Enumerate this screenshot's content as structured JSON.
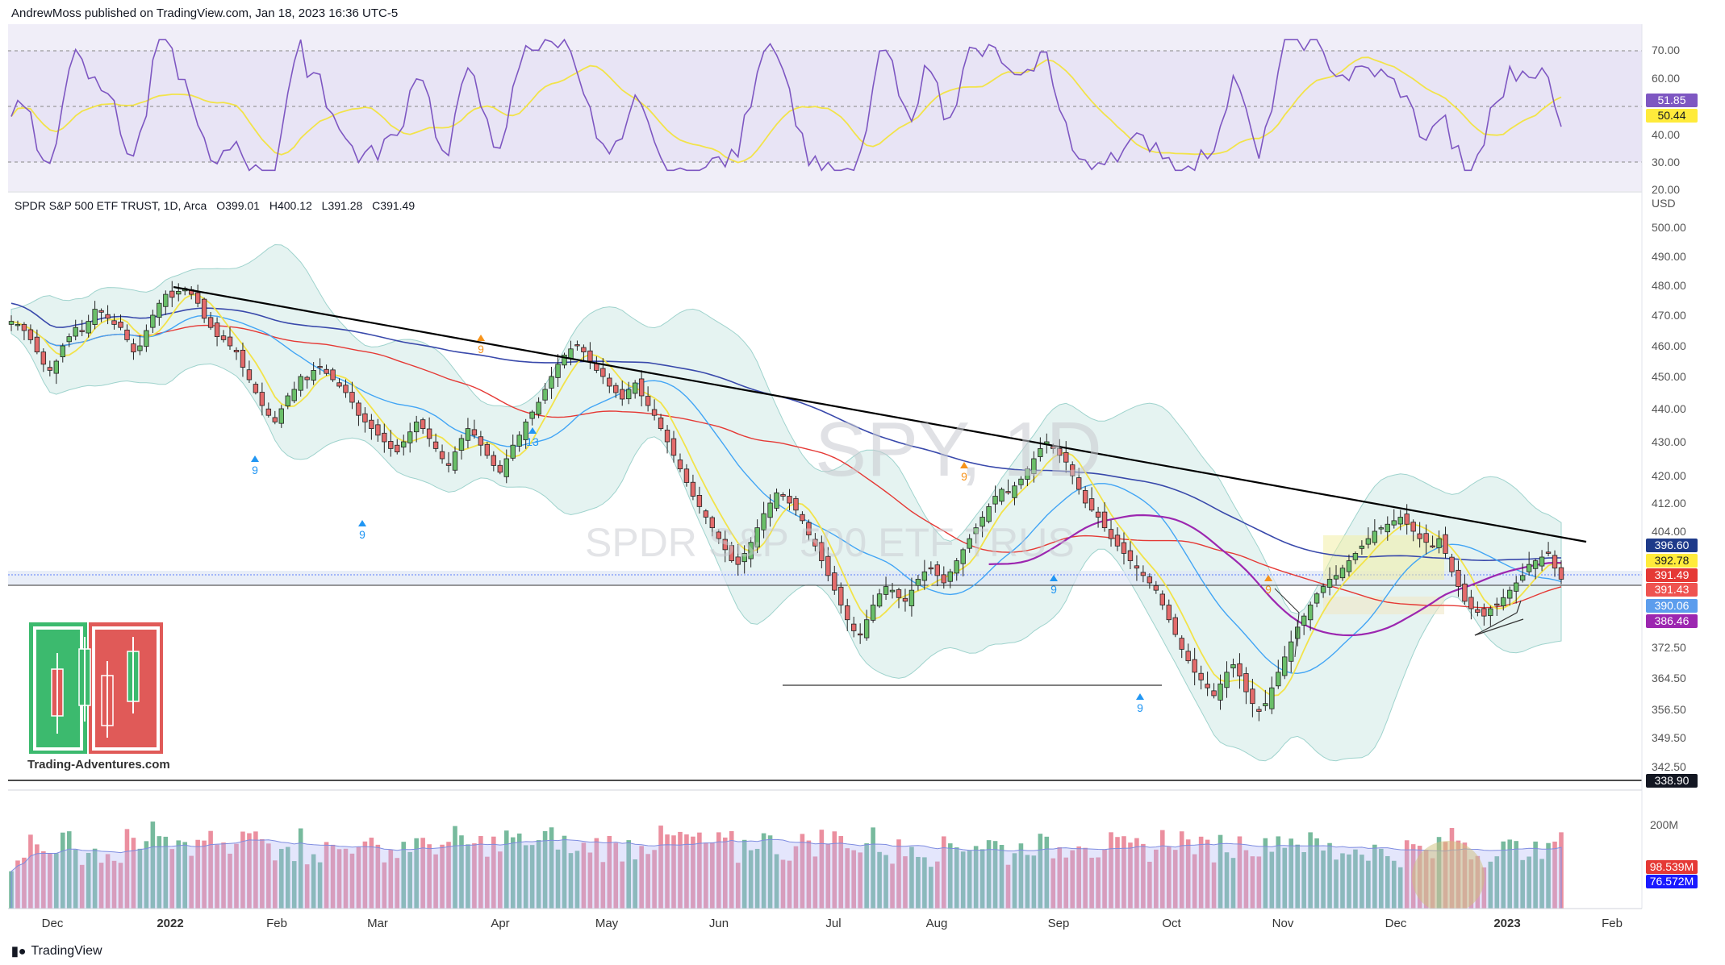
{
  "header": {
    "published": "AndrewMoss published on TradingView.com, Jan 18, 2023 16:36 UTC-5"
  },
  "symbol": {
    "name": "SPDR S&P 500 ETF TRUST, 1D, Arca",
    "open": "O399.01",
    "high": "H400.12",
    "low": "L391.28",
    "close": "C391.49"
  },
  "watermark": {
    "ticker": "SPY, 1D",
    "name": "SPDR S&P 500 ETF TRUS"
  },
  "currency": "USD",
  "brand": {
    "overlay_text": "Trading-Adventures.com",
    "footer": "TradingView"
  },
  "colors": {
    "up": "#26a69a",
    "down": "#ef5350",
    "rsi_line": "#7e57c2",
    "rsi_ma": "#f5e663",
    "ma_red": "#e53935",
    "ma_blue": "#3949ab",
    "ema_yellow": "#f2e34a",
    "vwap_purple": "#9c27b0",
    "bb_fill": "#b2dfdb"
  },
  "price_axis": {
    "ticks": [
      "500.00",
      "490.00",
      "480.00",
      "470.00",
      "460.00",
      "450.00",
      "440.00",
      "430.00",
      "420.00",
      "412.00",
      "404.00",
      "372.50",
      "364.50",
      "356.50",
      "349.50",
      "342.50"
    ]
  },
  "price_badges": [
    {
      "value": "396.60",
      "bg": "#1e3a8a",
      "fg": "#ffffff"
    },
    {
      "value": "392.78",
      "bg": "#ffeb3b",
      "fg": "#131722"
    },
    {
      "value": "391.49",
      "bg": "#e53935",
      "fg": "#ffffff"
    },
    {
      "value": "391.43",
      "bg": "#ef5350",
      "fg": "#ffffff"
    },
    {
      "value": "390.06",
      "bg": "#5c9ded",
      "fg": "#ffffff"
    },
    {
      "value": "386.46",
      "bg": "#9c27b0",
      "fg": "#ffffff"
    },
    {
      "value": "338.90",
      "bg": "#131722",
      "fg": "#ffffff"
    }
  ],
  "rsi_axis": {
    "ticks": [
      "70.00",
      "60.00",
      "40.00",
      "30.00",
      "20.00"
    ]
  },
  "rsi_badges": [
    {
      "value": "51.85",
      "bg": "#7e57c2",
      "fg": "#ffffff"
    },
    {
      "value": "50.44",
      "bg": "#ffeb3b",
      "fg": "#131722"
    }
  ],
  "volume_axis": {
    "ticks": [
      "200M"
    ]
  },
  "volume_badges": [
    {
      "value": "98.539M",
      "bg": "#e53935",
      "fg": "#ffffff"
    },
    {
      "value": "76.572M",
      "bg": "#1a1aff",
      "fg": "#ffffff"
    }
  ],
  "x_axis": {
    "labels": [
      "Dec",
      "2022",
      "Feb",
      "Mar",
      "Apr",
      "May",
      "Jun",
      "Jul",
      "Aug",
      "Sep",
      "Oct",
      "Nov",
      "Dec",
      "2023",
      "Feb"
    ]
  },
  "td_marks": [
    {
      "label": "9",
      "color": "#2196f3"
    },
    {
      "label": "9",
      "color": "#2196f3"
    },
    {
      "label": "13",
      "color": "#2196f3"
    },
    {
      "label": "9",
      "color": "#2196f3"
    },
    {
      "label": "9",
      "color": "#2196f3"
    },
    {
      "label": "9",
      "color": "#2196f3"
    },
    {
      "label": "9",
      "color": "#f7931a"
    },
    {
      "label": "9",
      "color": "#f7931a"
    },
    {
      "label": "9",
      "color": "#f7931a"
    }
  ],
  "chart_data": {
    "type": "candlestick",
    "title": "SPDR S&P 500 ETF TRUST, 1D, Arca",
    "ylim": [
      338,
      505
    ],
    "price_closes_approx": [
      468,
      467,
      465,
      462,
      458,
      454,
      452,
      455,
      460,
      463,
      466,
      465,
      468,
      472,
      471,
      469,
      467,
      466,
      462,
      458,
      460,
      465,
      470,
      474,
      477,
      476,
      478,
      479,
      477,
      474,
      469,
      466,
      463,
      462,
      460,
      458,
      453,
      449,
      445,
      441,
      438,
      436,
      440,
      444,
      446,
      450,
      449,
      452,
      453,
      451,
      449,
      447,
      445,
      442,
      438,
      436,
      434,
      432,
      430,
      428,
      427,
      430,
      433,
      436,
      434,
      431,
      428,
      425,
      423,
      427,
      431,
      434,
      432,
      429,
      426,
      423,
      421,
      425,
      429,
      432,
      436,
      439,
      442,
      446,
      450,
      454,
      457,
      459,
      460,
      458,
      455,
      452,
      450,
      447,
      445,
      443,
      446,
      448,
      444,
      441,
      438,
      434,
      430,
      426,
      422,
      418,
      414,
      411,
      408,
      405,
      402,
      399,
      396,
      395,
      398,
      401,
      405,
      409,
      412,
      415,
      414,
      412,
      410,
      407,
      403,
      400,
      396,
      392,
      388,
      384,
      380,
      377,
      376,
      380,
      384,
      387,
      389,
      388,
      386,
      385,
      388,
      391,
      393,
      394,
      392,
      390,
      393,
      396,
      399,
      402,
      405,
      408,
      411,
      414,
      416,
      415,
      417,
      419,
      422,
      425,
      428,
      430,
      428,
      426,
      424,
      420,
      416,
      412,
      410,
      408,
      405,
      402,
      400,
      398,
      396,
      394,
      392,
      390,
      388,
      384,
      380,
      376,
      372,
      369,
      366,
      364,
      362,
      360,
      363,
      366,
      368,
      365,
      361,
      358,
      356,
      358,
      362,
      366,
      370,
      374,
      378,
      381,
      384,
      387,
      389,
      391,
      392,
      394,
      396,
      398,
      400,
      402,
      404,
      405,
      406,
      407,
      408,
      406,
      404,
      402,
      401,
      400,
      402,
      398,
      393,
      389,
      385,
      383,
      382,
      381,
      383,
      384,
      386,
      388,
      390,
      392,
      395,
      396,
      397,
      398,
      394,
      391
    ],
    "volume_avg_label": "76.572M",
    "volume_last_label": "98.539M",
    "rsi_last": 51.85,
    "rsi_ma_last": 50.44,
    "levels": {
      "support": 338.9,
      "range_low": 364.5
    }
  }
}
